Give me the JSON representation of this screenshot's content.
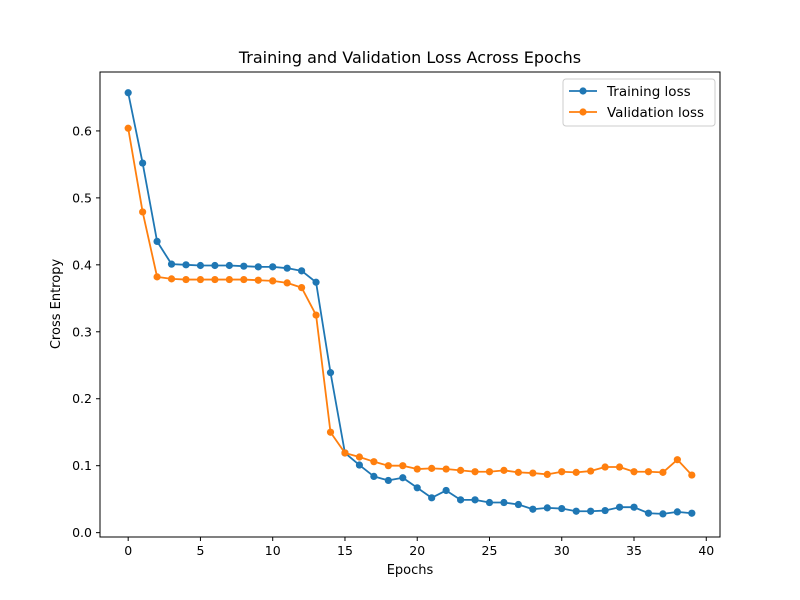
{
  "chart_data": {
    "type": "line",
    "title": "Training and Validation Loss Across Epochs",
    "xlabel": "Epochs",
    "ylabel": "Cross Entropy",
    "xlim": [
      -1.95,
      40.95
    ],
    "ylim": [
      -0.0065,
      0.688
    ],
    "xticks": [
      0,
      5,
      10,
      15,
      20,
      25,
      30,
      35,
      40
    ],
    "yticks": [
      0.0,
      0.1,
      0.2,
      0.3,
      0.4,
      0.5,
      0.6
    ],
    "ytick_labels": [
      "0.0",
      "0.1",
      "0.2",
      "0.3",
      "0.4",
      "0.5",
      "0.6"
    ],
    "grid": false,
    "legend_position": "top-right",
    "x": [
      0,
      1,
      2,
      3,
      4,
      5,
      6,
      7,
      8,
      9,
      10,
      11,
      12,
      13,
      14,
      15,
      16,
      17,
      18,
      19,
      20,
      21,
      22,
      23,
      24,
      25,
      26,
      27,
      28,
      29,
      30,
      31,
      32,
      33,
      34,
      35,
      36,
      37,
      38,
      39
    ],
    "series": [
      {
        "name": "Training loss",
        "color": "#1f77b4",
        "values": [
          0.657,
          0.552,
          0.435,
          0.401,
          0.4,
          0.399,
          0.399,
          0.399,
          0.398,
          0.397,
          0.397,
          0.395,
          0.391,
          0.374,
          0.239,
          0.119,
          0.101,
          0.084,
          0.078,
          0.082,
          0.067,
          0.052,
          0.063,
          0.049,
          0.049,
          0.045,
          0.045,
          0.042,
          0.035,
          0.037,
          0.036,
          0.032,
          0.032,
          0.033,
          0.038,
          0.038,
          0.029,
          0.028,
          0.031,
          0.029
        ]
      },
      {
        "name": "Validation loss",
        "color": "#ff7f0e",
        "values": [
          0.604,
          0.479,
          0.382,
          0.379,
          0.378,
          0.378,
          0.378,
          0.378,
          0.378,
          0.377,
          0.376,
          0.373,
          0.366,
          0.325,
          0.15,
          0.119,
          0.113,
          0.106,
          0.1,
          0.1,
          0.095,
          0.096,
          0.095,
          0.093,
          0.091,
          0.091,
          0.093,
          0.09,
          0.089,
          0.087,
          0.091,
          0.09,
          0.092,
          0.098,
          0.098,
          0.091,
          0.091,
          0.09,
          0.109,
          0.086
        ]
      }
    ]
  }
}
